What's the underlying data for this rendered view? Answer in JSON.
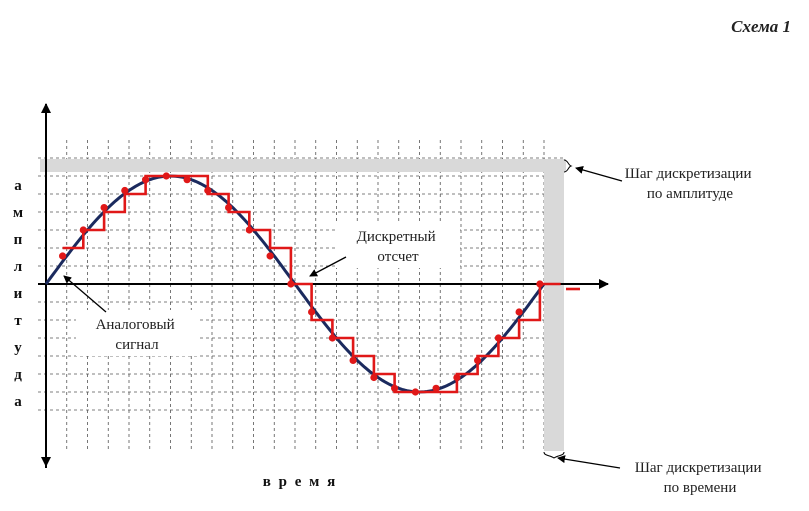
{
  "header": {
    "schema_label": "Схема 1"
  },
  "axes": {
    "y_letters": [
      "а",
      "м",
      "п",
      "л",
      "и",
      "т",
      "у",
      "д",
      "а"
    ],
    "x_label": "в р е м я"
  },
  "labels": {
    "amplitude_step": [
      "Шаг дискретизации",
      "по амплитуде"
    ],
    "time_step": [
      "Шаг дискретизации",
      "по времени"
    ],
    "discrete_sample": [
      "Дискретный",
      "отсчет"
    ],
    "analog_signal": [
      "Аналоговый",
      "сигнал"
    ]
  },
  "colors": {
    "analog": "#1b2a5e",
    "discrete": "#e01818",
    "grid": "#555555",
    "band": "#d9d9d9",
    "axis": "#000000"
  },
  "signal": {
    "sample_count": 24,
    "amplitude_levels": 6
  }
}
